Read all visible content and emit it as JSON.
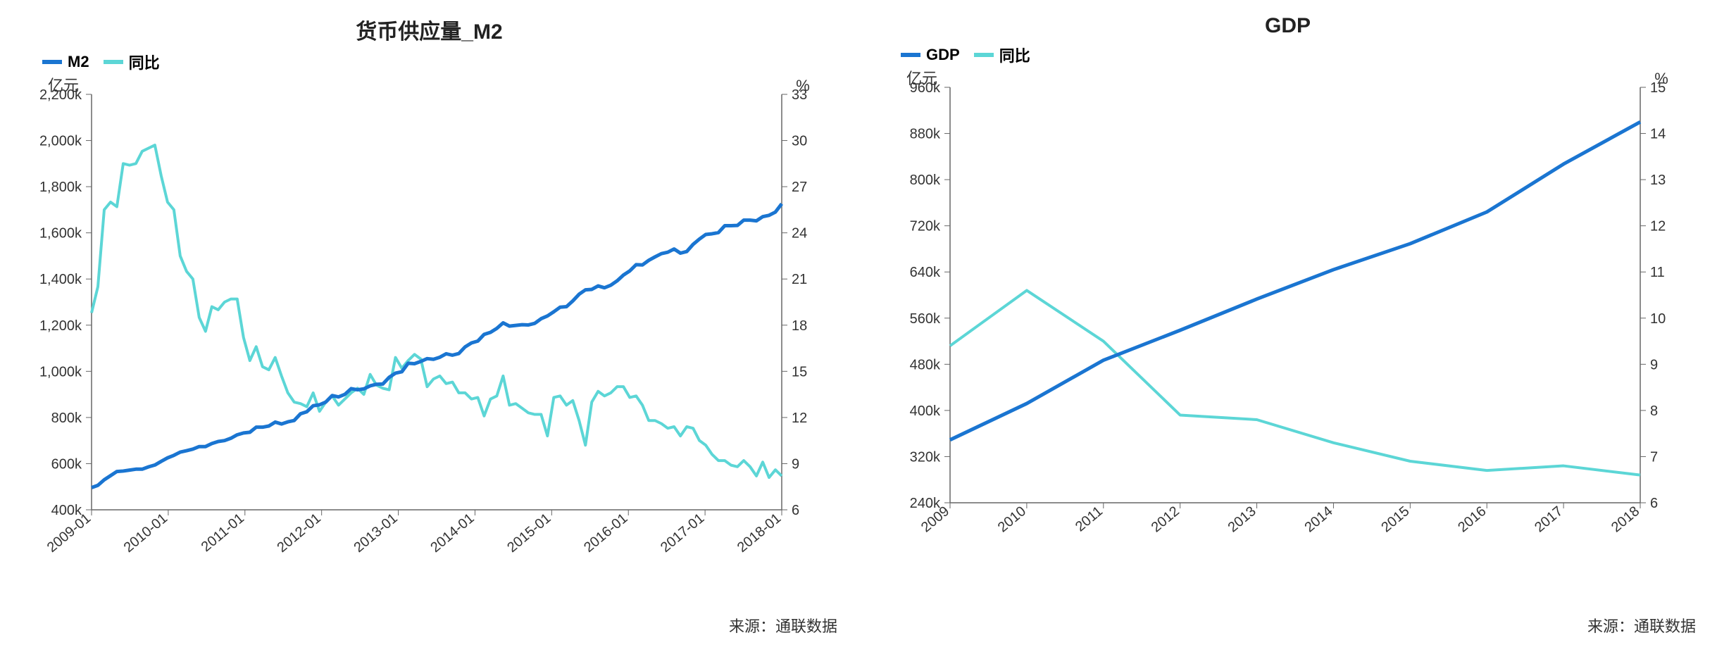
{
  "source_label": "来源：通联数据",
  "colors": {
    "primary": "#1a75d1",
    "secondary": "#5cd6d6",
    "axis": "#333333",
    "border": "#666666"
  },
  "left": {
    "title": "货币供应量_M2",
    "legend": [
      {
        "label": "M2",
        "color": "#1a75d1"
      },
      {
        "label": "同比",
        "color": "#5cd6d6"
      }
    ],
    "left_axis": {
      "unit": "亿元",
      "min": 400000,
      "max": 2200000,
      "step": 200000,
      "tick_labels": [
        "400k",
        "600k",
        "800k",
        "1,000k",
        "1,200k",
        "1,400k",
        "1,600k",
        "1,800k",
        "2,000k",
        "2,200k"
      ]
    },
    "right_axis": {
      "unit": "%",
      "min": 6,
      "max": 33,
      "step": 3,
      "tick_labels": [
        "6",
        "9",
        "12",
        "15",
        "18",
        "21",
        "24",
        "27",
        "30",
        "33"
      ]
    },
    "x_labels": [
      "2009-01",
      "2010-01",
      "2011-01",
      "2012-01",
      "2013-01",
      "2014-01",
      "2015-01",
      "2016-01",
      "2017-01",
      "2018-01"
    ],
    "x_range": [
      0,
      109
    ],
    "series_m2": [
      496000,
      506000,
      530000,
      548000,
      566000,
      568000,
      572000,
      576000,
      576000,
      586000,
      594000,
      610000,
      625000,
      636000,
      650000,
      656000,
      663000,
      674000,
      674000,
      687000,
      696000,
      700000,
      710000,
      725000,
      733000,
      736000,
      758000,
      758000,
      763000,
      780000,
      772000,
      781000,
      787000,
      816000,
      825000,
      851000,
      855000,
      867000,
      895000,
      889000,
      900000,
      925000,
      920000,
      924000,
      937000,
      944000,
      945000,
      974000,
      992000,
      998000,
      1035000,
      1033000,
      1043000,
      1055000,
      1052000,
      1061000,
      1076000,
      1070000,
      1077000,
      1106000,
      1123000,
      1131000,
      1160000,
      1169000,
      1186000,
      1210000,
      1196000,
      1199000,
      1202000,
      1201000,
      1208000,
      1228000,
      1240000,
      1258000,
      1278000,
      1280000,
      1305000,
      1334000,
      1353000,
      1355000,
      1370000,
      1362000,
      1373000,
      1392000,
      1417000,
      1435000,
      1462000,
      1461000,
      1481000,
      1496000,
      1510000,
      1516000,
      1530000,
      1512000,
      1519000,
      1550000,
      1573000,
      1593000,
      1596000,
      1601000,
      1631000,
      1631000,
      1632000,
      1655000,
      1655000,
      1652000,
      1670000,
      1676000,
      1690000,
      1726000
    ],
    "series_tb": [
      18.8,
      20.5,
      25.5,
      26.0,
      25.7,
      28.5,
      28.4,
      28.5,
      29.3,
      29.5,
      29.7,
      27.7,
      26.0,
      25.5,
      22.5,
      21.5,
      21.0,
      18.5,
      17.6,
      19.2,
      19.0,
      19.5,
      19.7,
      19.7,
      17.2,
      15.7,
      16.6,
      15.3,
      15.1,
      15.9,
      14.7,
      13.6,
      13.0,
      12.9,
      12.7,
      13.6,
      12.4,
      13.0,
      13.4,
      12.8,
      13.2,
      13.6,
      13.9,
      13.5,
      14.8,
      14.1,
      13.9,
      13.8,
      15.9,
      15.2,
      15.7,
      16.1,
      15.8,
      14.0,
      14.5,
      14.7,
      14.2,
      14.3,
      13.6,
      13.6,
      13.2,
      13.3,
      12.1,
      13.2,
      13.4,
      14.7,
      12.8,
      12.9,
      12.6,
      12.3,
      12.2,
      12.2,
      10.8,
      13.3,
      13.4,
      12.8,
      13.1,
      11.8,
      10.2,
      13.0,
      13.7,
      13.4,
      13.6,
      14.0,
      14.0,
      13.3,
      13.4,
      12.8,
      11.8,
      11.8,
      11.6,
      11.3,
      11.4,
      10.8,
      11.4,
      11.3,
      10.5,
      10.2,
      9.6,
      9.2,
      9.2,
      8.9,
      8.8,
      9.2,
      8.8,
      8.2,
      9.1,
      8.1,
      8.6,
      8.2
    ]
  },
  "right": {
    "title": "GDP",
    "legend": [
      {
        "label": "GDP",
        "color": "#1a75d1"
      },
      {
        "label": "同比",
        "color": "#5cd6d6"
      }
    ],
    "left_axis": {
      "unit": "亿元",
      "min": 240000,
      "max": 960000,
      "step": 80000,
      "tick_labels": [
        "240k",
        "320k",
        "400k",
        "480k",
        "560k",
        "640k",
        "720k",
        "800k",
        "880k",
        "960k"
      ]
    },
    "right_axis": {
      "unit": "%",
      "min": 6,
      "max": 15,
      "step": 1,
      "tick_labels": [
        "6",
        "7",
        "8",
        "9",
        "10",
        "11",
        "12",
        "13",
        "14",
        "15"
      ]
    },
    "x_labels": [
      "2009",
      "2010",
      "2011",
      "2012",
      "2013",
      "2014",
      "2015",
      "2016",
      "2017",
      "2018"
    ],
    "x_range": [
      0,
      9
    ],
    "series_gdp": [
      349000,
      412000,
      487000,
      539000,
      593000,
      644000,
      689000,
      744000,
      827000,
      900000
    ],
    "series_tb": [
      9.4,
      10.6,
      9.5,
      7.9,
      7.8,
      7.3,
      6.9,
      6.7,
      6.8,
      6.6
    ]
  }
}
